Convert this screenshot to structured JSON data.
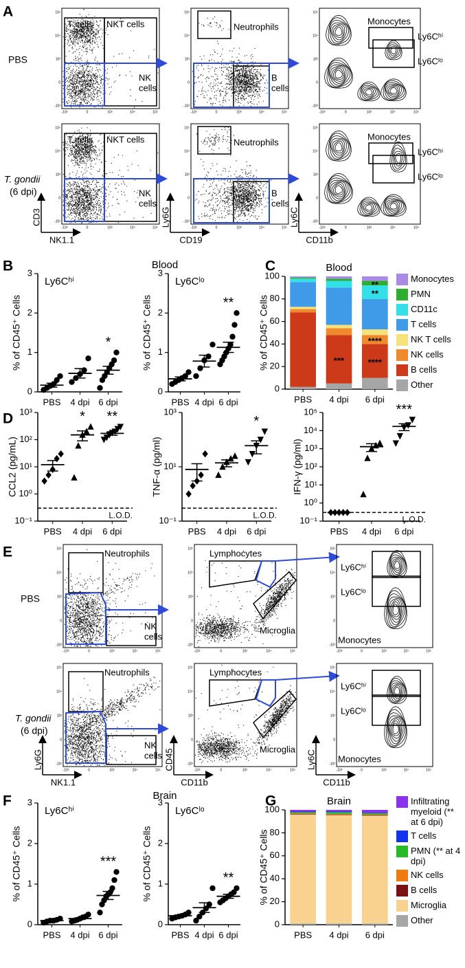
{
  "figure": {
    "panel_labels": [
      "A",
      "B",
      "C",
      "D",
      "E",
      "F",
      "G"
    ],
    "blood_title": "Blood",
    "brain_title": "Brain",
    "flow": {
      "pbs": "PBS",
      "tg": "T. gondii",
      "tg_dpi": "(6 dpi)",
      "tick_labels": [
        "-10³",
        "0",
        "10³",
        "10⁴",
        "10⁵"
      ],
      "A": {
        "t_cells": "T cells",
        "nkt_cells": "NKT cells",
        "nk": "NK",
        "cells": "cells",
        "neutrophils": "Neutrophils",
        "b": "B",
        "monocytes": "Monocytes",
        "ly6chi": "Ly6Cʰⁱ",
        "ly6clo": "Ly6Cˡᵒ",
        "axes": [
          "CD3",
          "NK1.1",
          "Ly6G",
          "CD19",
          "Ly6C",
          "CD11b"
        ]
      },
      "E": {
        "neutrophils": "Neutrophils",
        "nk": "NK",
        "cells": "cells",
        "lymphocytes": "Lymphocytes",
        "microglia": "Microglia",
        "ly6chi": "Ly6Cʰⁱ",
        "ly6clo": "Ly6Cˡᵒ",
        "monocytes": "Monocytes",
        "axes": [
          "Ly6G",
          "NK1.1",
          "CD45",
          "CD11b",
          "Ly6C",
          "CD11b"
        ]
      }
    }
  },
  "chart_data": [
    {
      "type": "dot",
      "title": "Ly6Cʰⁱ",
      "ylabel": "% of CD45⁺ Cells",
      "categories": [
        "PBS",
        "4 dpi",
        "6 dpi"
      ],
      "values": [
        [
          0.05,
          0.1,
          0.15,
          0.2,
          0.3,
          0.4
        ],
        [
          0.25,
          0.35,
          0.45,
          0.55,
          0.85
        ],
        [
          0.1,
          0.3,
          0.4,
          0.5,
          0.6,
          0.7,
          0.8,
          1.0
        ]
      ],
      "means": [
        0.17,
        0.47,
        0.55
      ],
      "errors": [
        0.05,
        0.12,
        0.1
      ],
      "marker": "circle",
      "color": "#000000",
      "ylim": [
        0,
        3
      ],
      "yticks": [
        0,
        1,
        2,
        3
      ],
      "annotations": [
        {
          "category": "6 dpi",
          "text": "*"
        }
      ]
    },
    {
      "type": "dot",
      "title": "Ly6Cˡᵒ",
      "ylabel": "% of CD45⁺ Cells",
      "categories": [
        "PBS",
        "4 dpi",
        "6 dpi"
      ],
      "values": [
        [
          0.2,
          0.25,
          0.3,
          0.35,
          0.4,
          0.5
        ],
        [
          0.4,
          0.6,
          0.8,
          0.9,
          1.2
        ],
        [
          0.7,
          0.8,
          0.9,
          1.0,
          1.1,
          1.2,
          1.4,
          1.7,
          2.0
        ]
      ],
      "means": [
        0.33,
        0.78,
        1.13
      ],
      "errors": [
        0.05,
        0.15,
        0.13
      ],
      "marker": "circle",
      "color": "#000000",
      "ylim": [
        0,
        3
      ],
      "yticks": [
        0,
        1,
        2,
        3
      ],
      "annotations": [
        {
          "category": "6 dpi",
          "text": "**"
        }
      ]
    },
    {
      "type": "stacked_bar",
      "title": "Blood",
      "ylabel": "% of CD45⁺ Cells",
      "categories": [
        "PBS",
        "4 dpi",
        "6 dpi"
      ],
      "series": [
        {
          "name": "Other",
          "color": "#a6a6a6",
          "values": [
            2,
            5,
            10
          ]
        },
        {
          "name": "B cells",
          "color": "#cc3a1a",
          "values": [
            66,
            43,
            30
          ]
        },
        {
          "name": "NK cells",
          "color": "#f0892c",
          "values": [
            3,
            6,
            8
          ]
        },
        {
          "name": "NK T cells",
          "color": "#f7e27a",
          "values": [
            2,
            3,
            5
          ]
        },
        {
          "name": "T cells",
          "color": "#3f9ae8",
          "values": [
            22,
            33,
            27
          ]
        },
        {
          "name": "CD11c",
          "color": "#33e0e8",
          "values": [
            3,
            6,
            12
          ]
        },
        {
          "name": "PMN",
          "color": "#2eae2e",
          "values": [
            1,
            2,
            4
          ]
        },
        {
          "name": "Monocytes",
          "color": "#a98ae6",
          "values": [
            1,
            2,
            4
          ]
        }
      ],
      "ylim": [
        0,
        100
      ],
      "yticks": [
        0,
        20,
        40,
        60,
        80,
        100
      ],
      "legend": "right",
      "annotations": [
        {
          "category": "4 dpi",
          "series": "B cells",
          "text": "***"
        },
        {
          "category": "6 dpi",
          "series": "B cells",
          "text": "****"
        },
        {
          "category": "6 dpi",
          "series": "NK cells",
          "text": "****"
        },
        {
          "category": "6 dpi",
          "series": "CD11c",
          "text": "**"
        },
        {
          "category": "6 dpi",
          "series": "PMN",
          "text": "**"
        }
      ]
    },
    {
      "type": "dot",
      "ylabel": "CCL2 (pg/mL)",
      "categories": [
        "PBS",
        "4 dpi",
        "6 dpi"
      ],
      "log": true,
      "values": [
        [
          3,
          5,
          8,
          20,
          30
        ],
        [
          4,
          60,
          150,
          200,
          300
        ],
        [
          100,
          120,
          150,
          180,
          200,
          250,
          300
        ]
      ],
      "means": [
        12,
        150,
        170
      ],
      "errors": [
        5,
        60,
        25
      ],
      "markers": [
        "diamond",
        "triangle-up",
        "triangle-down"
      ],
      "color": "#000000",
      "ylim": [
        0.1,
        1000
      ],
      "yticks": [
        {
          "value": 0.1,
          "label": "10⁻¹"
        },
        {
          "value": 1,
          "label": "10⁰"
        },
        {
          "value": 10,
          "label": "10¹"
        },
        {
          "value": 100,
          "label": "10²"
        },
        {
          "value": 1000,
          "label": "10³"
        }
      ],
      "lod": {
        "value": 0.3,
        "label": "L.O.D."
      },
      "annotations": [
        {
          "category": "4 dpi",
          "text": "*"
        },
        {
          "category": "6 dpi",
          "text": "**"
        }
      ]
    },
    {
      "type": "dot",
      "ylabel": "TNF-α (pg/ml)",
      "categories": [
        "PBS",
        "4 dpi",
        "6 dpi"
      ],
      "log": true,
      "values": [
        [
          1,
          2,
          3,
          5,
          30
        ],
        [
          5,
          10,
          15,
          20,
          25
        ],
        [
          15,
          30,
          60,
          100,
          200
        ]
      ],
      "means": [
        8,
        14,
        60
      ],
      "errors": [
        5,
        4,
        30
      ],
      "markers": [
        "diamond",
        "triangle-up",
        "triangle-down"
      ],
      "color": "#000000",
      "ylim": [
        0.1,
        1000
      ],
      "yticks": [
        {
          "value": 0.1,
          "label": "10⁻¹"
        },
        {
          "value": 10,
          "label": "10¹"
        },
        {
          "value": 1000,
          "label": "10³"
        }
      ],
      "lod": {
        "value": 0.3,
        "label": "L.O.D."
      },
      "annotations": [
        {
          "category": "6 dpi",
          "text": "*"
        }
      ]
    },
    {
      "type": "dot",
      "ylabel": "IFN-γ (pg/ml)",
      "categories": [
        "PBS",
        "4 dpi",
        "6 dpi"
      ],
      "log": true,
      "values": [
        [
          0.3,
          0.3,
          0.3,
          0.3,
          0.3
        ],
        [
          3,
          300,
          1000,
          1500,
          2000
        ],
        [
          2000,
          5000,
          15000,
          20000,
          40000
        ]
      ],
      "means": [
        0.3,
        1300,
        17000
      ],
      "errors": [
        0.01,
        600,
        7000
      ],
      "markers": [
        "diamond",
        "triangle-up",
        "triangle-down"
      ],
      "color": "#000000",
      "ylim": [
        0.1,
        100000
      ],
      "yticks": [
        {
          "value": 0.1,
          "label": "10⁻¹"
        },
        {
          "value": 1,
          "label": "10⁰"
        },
        {
          "value": 10,
          "label": "10¹"
        },
        {
          "value": 100,
          "label": "10²"
        },
        {
          "value": 1000,
          "label": "10³"
        },
        {
          "value": 10000,
          "label": "10⁴"
        },
        {
          "value": 100000,
          "label": "10⁵"
        }
      ],
      "lod": {
        "value": 0.3,
        "label": "L.O.D."
      },
      "annotations": [
        {
          "category": "6 dpi",
          "text": "***"
        }
      ]
    },
    {
      "type": "dot",
      "title": "Ly6Cʰⁱ",
      "ylabel": "% of CD45⁺ Cells",
      "categories": [
        "PBS",
        "4 dpi",
        "6 dpi"
      ],
      "values": [
        [
          0.05,
          0.08,
          0.1,
          0.1,
          0.12,
          0.15
        ],
        [
          0.08,
          0.1,
          0.12,
          0.15,
          0.18,
          0.2,
          0.25
        ],
        [
          0.3,
          0.5,
          0.6,
          0.7,
          0.75,
          0.8,
          0.9,
          1.1,
          1.3
        ]
      ],
      "means": [
        0.1,
        0.15,
        0.72
      ],
      "errors": [
        0.015,
        0.02,
        0.1
      ],
      "marker": "circle",
      "color": "#000000",
      "ylim": [
        0,
        3
      ],
      "yticks": [
        0,
        1,
        2,
        3
      ],
      "annotations": [
        {
          "category": "6 dpi",
          "text": "***"
        }
      ]
    },
    {
      "type": "dot",
      "title": "Ly6Cˡᵒ",
      "ylabel": "% of CD45⁺ Cells",
      "categories": [
        "PBS",
        "4 dpi",
        "6 dpi"
      ],
      "values": [
        [
          0.15,
          0.18,
          0.2,
          0.22,
          0.25,
          0.3
        ],
        [
          0.1,
          0.2,
          0.3,
          0.4,
          0.5,
          0.9
        ],
        [
          0.55,
          0.6,
          0.65,
          0.7,
          0.75,
          0.8,
          0.9
        ]
      ],
      "means": [
        0.22,
        0.42,
        0.7
      ],
      "errors": [
        0.02,
        0.12,
        0.05
      ],
      "marker": "circle",
      "color": "#000000",
      "ylim": [
        0,
        3
      ],
      "yticks": [
        0,
        1,
        2,
        3
      ],
      "annotations": [
        {
          "category": "6 dpi",
          "text": "**"
        }
      ]
    },
    {
      "type": "stacked_bar",
      "title": "Brain",
      "ylabel": "% of CD45⁺ Cells",
      "categories": [
        "PBS",
        "4 dpi",
        "6 dpi"
      ],
      "series": [
        {
          "name": "Other",
          "color": "#a6a6a6",
          "values": [
            1,
            1,
            1
          ]
        },
        {
          "name": "Microglia",
          "color": "#f8d28e",
          "values": [
            95,
            94.5,
            94
          ]
        },
        {
          "name": "B cells",
          "color": "#7a1212",
          "values": [
            0.5,
            0.5,
            0.5
          ]
        },
        {
          "name": "NK cells",
          "color": "#f07a10",
          "values": [
            0.5,
            0.5,
            0.5
          ]
        },
        {
          "name": "PMN (** at 4 dpi)",
          "color": "#26bb26",
          "values": [
            1,
            1.5,
            1
          ]
        },
        {
          "name": "T cells",
          "color": "#1133ee",
          "values": [
            0.5,
            0.5,
            0.5
          ]
        },
        {
          "name": "Infiltrating myeloid (** at 6 dpi)",
          "color": "#8a33ee",
          "values": [
            1.5,
            1.5,
            2.5
          ]
        }
      ],
      "ylim": [
        0,
        100
      ],
      "yticks": [
        0,
        20,
        40,
        60,
        80,
        100
      ],
      "legend": "right",
      "annotations": []
    }
  ]
}
